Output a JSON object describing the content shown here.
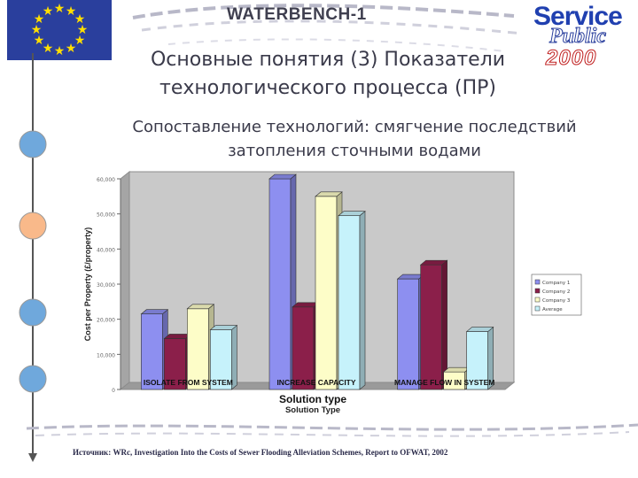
{
  "header": {
    "title": "WATERBENCH-1",
    "logo": {
      "line1": "Service",
      "line2": "Public",
      "line3": "2000"
    }
  },
  "slide": {
    "title_line1": "Основные понятия (3) Показатели",
    "title_line2": "технологического процесса (ПР)",
    "subtitle_line1": "Сопоставление технологий: смягчение последствий",
    "subtitle_line2": "затопления сточными водами",
    "source": "Источник: WRc, Investigation Into the Costs of Sewer Flooding Alleviation Schemes, Report to OFWAT, 2002"
  },
  "timeline": {
    "nodes": [
      {
        "color": "#6fa8dc"
      },
      {
        "color": "#f9b98a"
      },
      {
        "color": "#6fa8dc"
      },
      {
        "color": "#6fa8dc"
      }
    ]
  },
  "chart_data": {
    "type": "bar",
    "categories": [
      "ISOLATE FROM SYSTEM",
      "INCREASE CAPACITY",
      "MANAGE FLOW IN SYSTEM"
    ],
    "series": [
      {
        "name": "Company 1",
        "color": "#8d8ff0",
        "values": [
          21500,
          60000,
          31500
        ]
      },
      {
        "name": "Company 2",
        "color": "#8b1f4a",
        "values": [
          14500,
          23500,
          35500
        ]
      },
      {
        "name": "Company 3",
        "color": "#fdfdc8",
        "values": [
          23000,
          55000,
          5000
        ]
      },
      {
        "name": "Average",
        "color": "#c6f2fb",
        "values": [
          17000,
          49500,
          16500
        ]
      }
    ],
    "xlabel": "Solution type",
    "xlabel_repeat": "Solution Type",
    "ylabel": "Cost per Property (£/property)",
    "ylim": [
      0,
      60000
    ],
    "yticks": [
      "0",
      "10,000",
      "20,000",
      "30,000",
      "40,000",
      "50,000",
      "60,000"
    ],
    "legend_position": "right",
    "grid": false
  }
}
